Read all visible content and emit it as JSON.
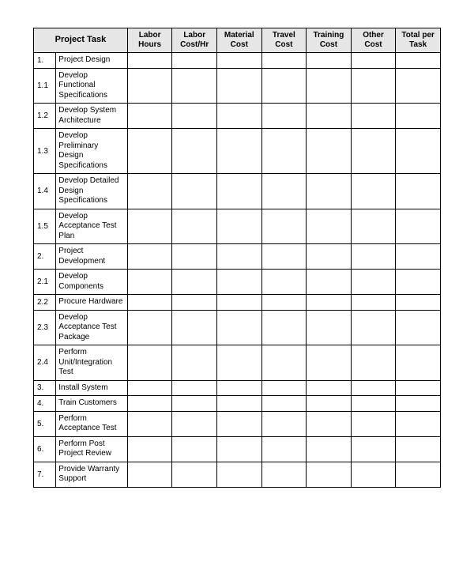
{
  "table": {
    "header_bg": "#e6e6e6",
    "border_color": "#000000",
    "columns": [
      {
        "key": "project_task",
        "label": "Project Task",
        "colspan": 2
      },
      {
        "key": "labor_hours",
        "label": "Labor Hours"
      },
      {
        "key": "labor_cost",
        "label": "Labor Cost/Hr"
      },
      {
        "key": "material",
        "label": "Material Cost"
      },
      {
        "key": "travel",
        "label": "Travel Cost"
      },
      {
        "key": "training",
        "label": "Training Cost"
      },
      {
        "key": "other",
        "label": "Other Cost"
      },
      {
        "key": "total",
        "label": "Total per Task"
      }
    ],
    "rows": [
      {
        "num": "1.",
        "task": "Project Design",
        "values": [
          "",
          "",
          "",
          "",
          "",
          "",
          ""
        ]
      },
      {
        "num": "1.1",
        "task": "Develop Functional Specifications",
        "values": [
          "",
          "",
          "",
          "",
          "",
          "",
          ""
        ]
      },
      {
        "num": "1.2",
        "task": "Develop System Architecture",
        "values": [
          "",
          "",
          "",
          "",
          "",
          "",
          ""
        ]
      },
      {
        "num": "1.3",
        "task": "Develop Preliminary Design Specifications",
        "values": [
          "",
          "",
          "",
          "",
          "",
          "",
          ""
        ]
      },
      {
        "num": "1.4",
        "task": "Develop Detailed Design Specifications",
        "values": [
          "",
          "",
          "",
          "",
          "",
          "",
          ""
        ]
      },
      {
        "num": "1.5",
        "task": "Develop Acceptance Test Plan",
        "values": [
          "",
          "",
          "",
          "",
          "",
          "",
          ""
        ]
      },
      {
        "num": "2.",
        "task": "Project Development",
        "values": [
          "",
          "",
          "",
          "",
          "",
          "",
          ""
        ]
      },
      {
        "num": "2.1",
        "task": "Develop Components",
        "values": [
          "",
          "",
          "",
          "",
          "",
          "",
          ""
        ]
      },
      {
        "num": "2.2",
        "task": "Procure Hardware",
        "values": [
          "",
          "",
          "",
          "",
          "",
          "",
          ""
        ]
      },
      {
        "num": "2.3",
        "task": "Develop Acceptance Test Package",
        "values": [
          "",
          "",
          "",
          "",
          "",
          "",
          ""
        ]
      },
      {
        "num": "2.4",
        "task": "Perform Unit/Integration Test",
        "values": [
          "",
          "",
          "",
          "",
          "",
          "",
          ""
        ]
      },
      {
        "num": "3.",
        "task": "Install System",
        "values": [
          "",
          "",
          "",
          "",
          "",
          "",
          ""
        ]
      },
      {
        "num": "4.",
        "task": "Train Customers",
        "values": [
          "",
          "",
          "",
          "",
          "",
          "",
          ""
        ]
      },
      {
        "num": "5.",
        "task": "Perform Acceptance Test",
        "values": [
          "",
          "",
          "",
          "",
          "",
          "",
          ""
        ]
      },
      {
        "num": "6.",
        "task": "Perform Post Project Review",
        "values": [
          "",
          "",
          "",
          "",
          "",
          "",
          ""
        ]
      },
      {
        "num": "7.",
        "task": "Provide Warranty Support",
        "values": [
          "",
          "",
          "",
          "",
          "",
          "",
          ""
        ]
      }
    ]
  }
}
